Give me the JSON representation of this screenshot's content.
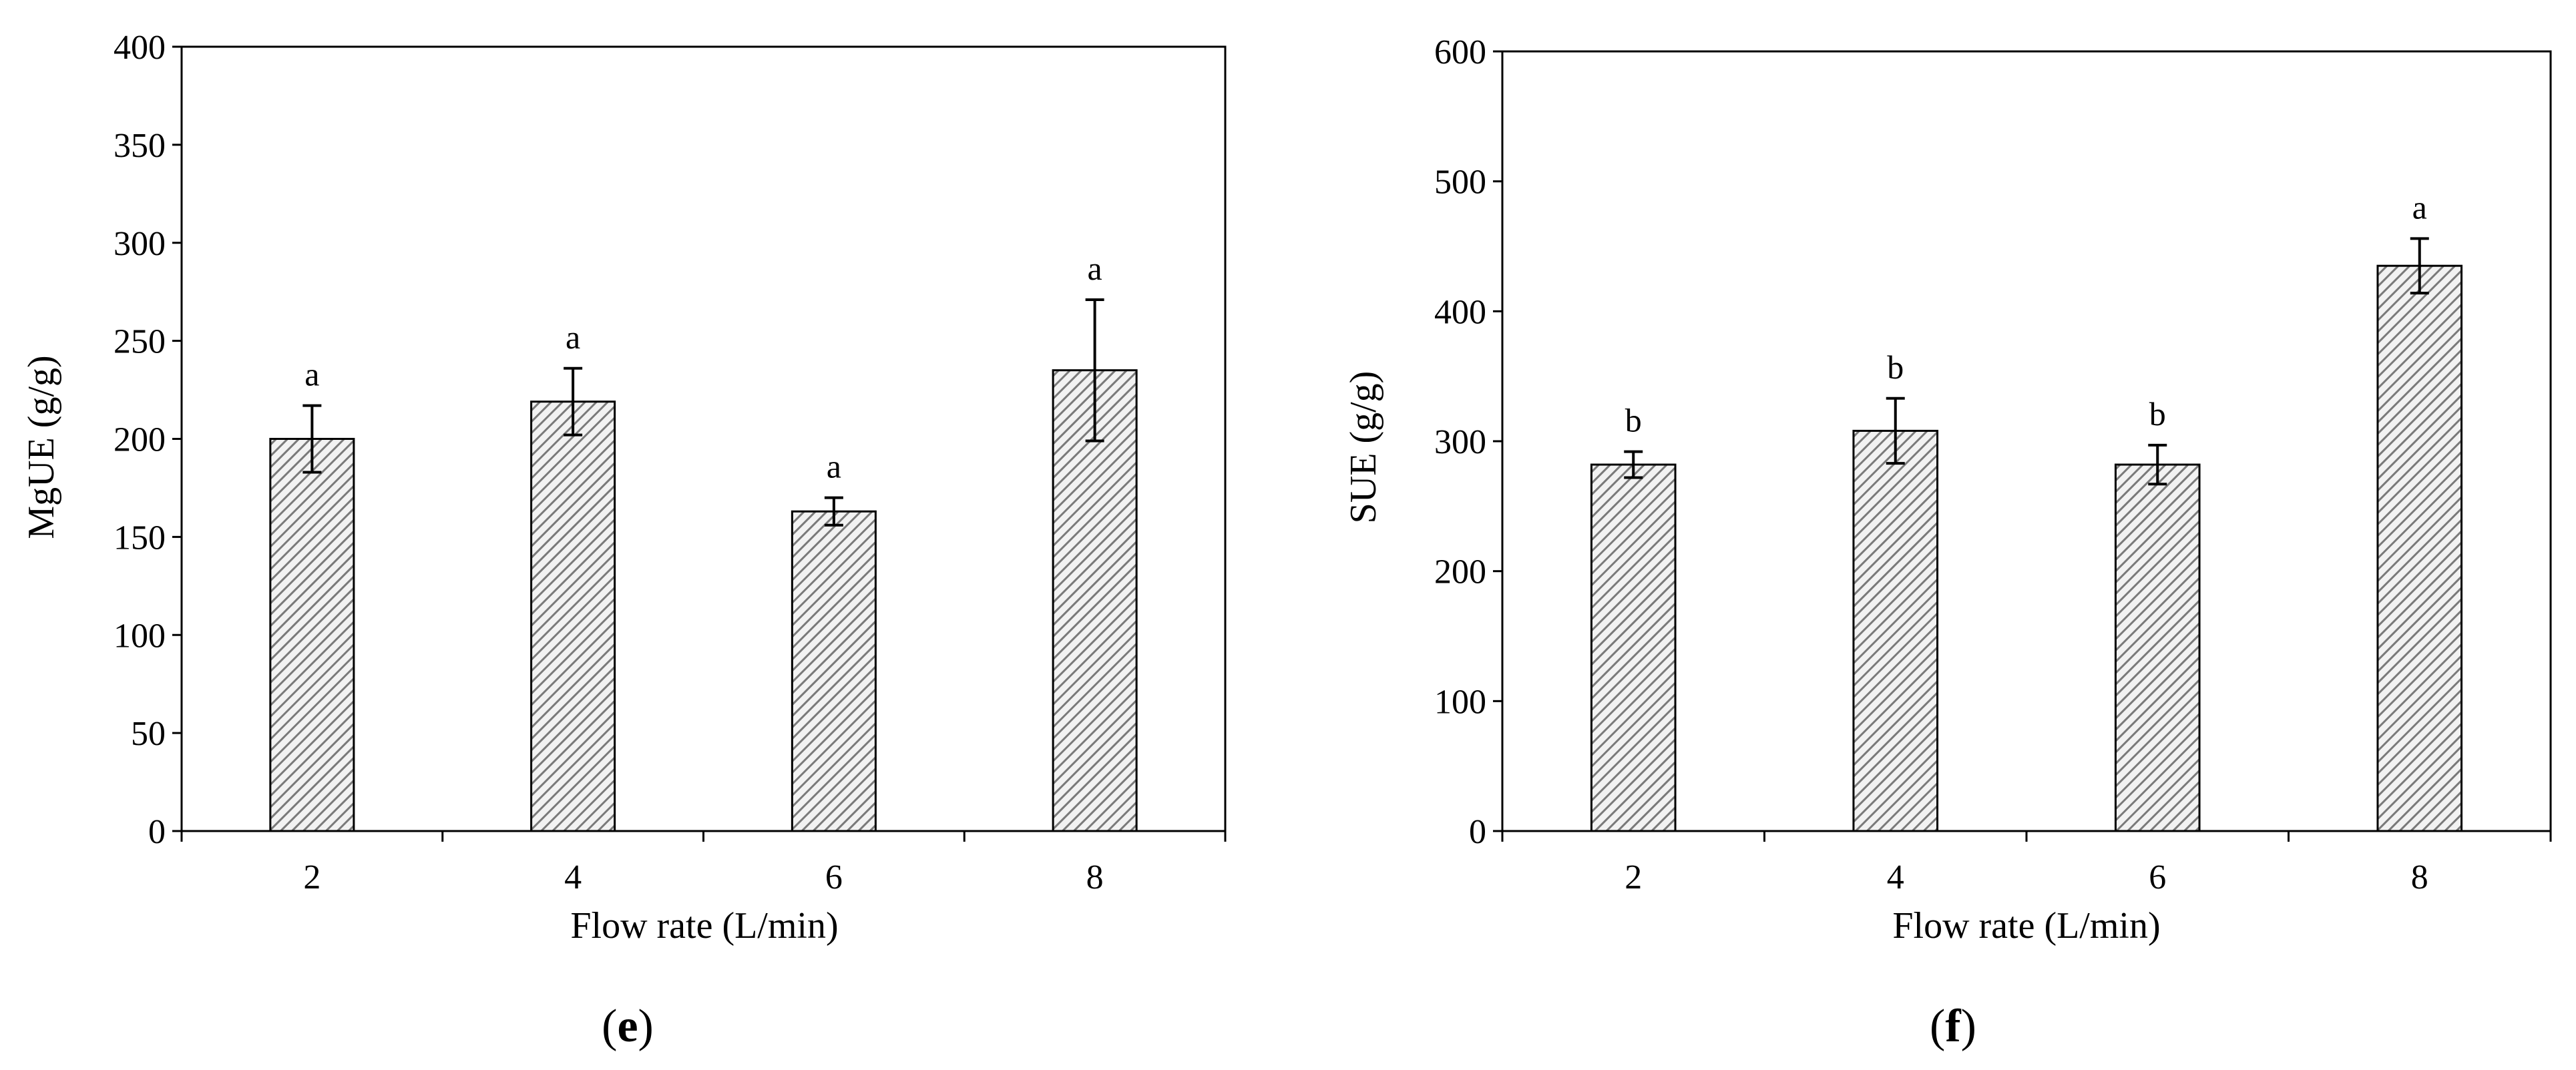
{
  "chart_data": [
    {
      "type": "bar",
      "panel_label": "e",
      "categories": [
        "2",
        "4",
        "6",
        "8"
      ],
      "values": [
        200,
        219,
        163,
        235
      ],
      "errors": [
        17,
        17,
        7,
        36
      ],
      "significance": [
        "a",
        "a",
        "a",
        "a"
      ],
      "xlabel": "Flow rate (L/min)",
      "ylabel": "MgUE (g/g)",
      "ylim": [
        0,
        400
      ],
      "yticks": [
        "0",
        "50",
        "100",
        "150",
        "200",
        "250",
        "300",
        "350",
        "400"
      ],
      "bar_fill": "hatched grey",
      "grid": false
    },
    {
      "type": "bar",
      "panel_label": "f",
      "categories": [
        "2",
        "4",
        "6",
        "8"
      ],
      "values": [
        282,
        308,
        282,
        435
      ],
      "errors": [
        10,
        25,
        15,
        21
      ],
      "significance": [
        "b",
        "b",
        "b",
        "a"
      ],
      "xlabel": "Flow rate (L/min)",
      "ylabel": "SUE (g/g)",
      "ylim": [
        0,
        600
      ],
      "yticks": [
        "0",
        "100",
        "200",
        "300",
        "400",
        "500",
        "600"
      ],
      "bar_fill": "hatched grey",
      "grid": false
    }
  ],
  "colors": {
    "axis": "#000000",
    "bar_stroke": "#000000",
    "hatch_line": "#7a7a7a",
    "bar_bg": "#f2f2f2"
  }
}
